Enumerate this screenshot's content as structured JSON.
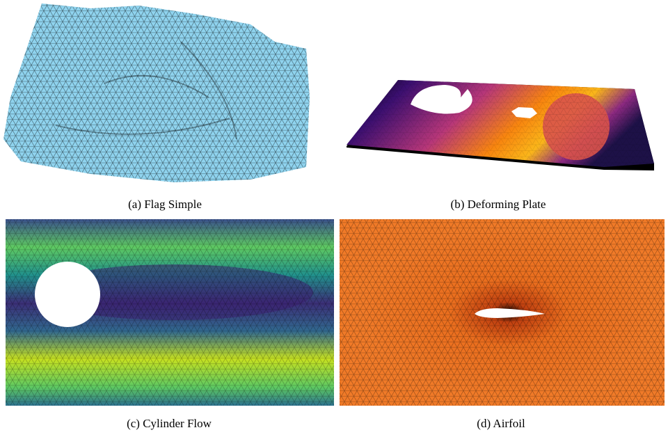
{
  "panels": [
    {
      "caption": "(a) Flag Simple"
    },
    {
      "caption": "(b) Deforming Plate"
    },
    {
      "caption": "(c) Cylinder Flow"
    },
    {
      "caption": "(d) Airfoil"
    }
  ]
}
